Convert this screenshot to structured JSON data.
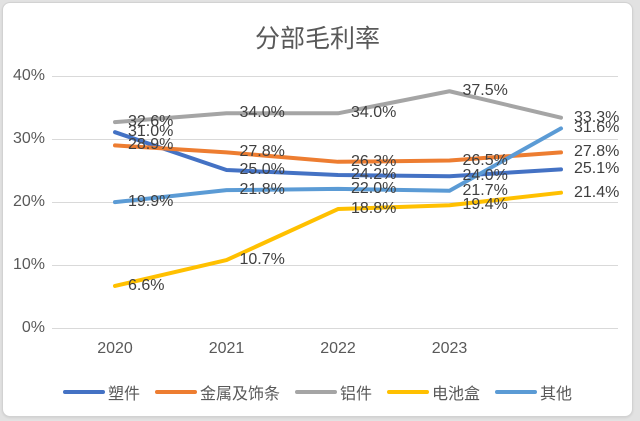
{
  "title": "分部毛利率",
  "chart_data": {
    "type": "line",
    "title": "分部毛利率",
    "categories": [
      "2020",
      "2021",
      "2022",
      "2023",
      ""
    ],
    "series": [
      {
        "name": "塑件",
        "color": "#4472C4",
        "values": [
          31.0,
          25.0,
          24.2,
          24.0,
          25.1
        ]
      },
      {
        "name": "金属及饰条",
        "color": "#ED7D31",
        "values": [
          28.9,
          27.8,
          26.3,
          26.5,
          27.8
        ]
      },
      {
        "name": "铝件",
        "color": "#A5A5A5",
        "values": [
          32.6,
          34.0,
          34.0,
          37.5,
          33.3
        ]
      },
      {
        "name": "电池盒",
        "color": "#FFC000",
        "values": [
          6.6,
          10.7,
          18.8,
          19.4,
          21.4
        ]
      },
      {
        "name": "其他",
        "color": "#5B9BD5",
        "values": [
          19.9,
          21.8,
          22.0,
          21.7,
          31.6
        ]
      }
    ],
    "y_ticks": [
      {
        "value": 40,
        "label": "40%"
      },
      {
        "value": 30,
        "label": "30%"
      },
      {
        "value": 20,
        "label": "20%"
      },
      {
        "value": 10,
        "label": "10%"
      },
      {
        "value": 0,
        "label": "0%"
      }
    ],
    "ylim": [
      0,
      40
    ],
    "grid": true,
    "data_labels": true,
    "data_label_format": {
      "decimals": 1,
      "suffix": "%"
    },
    "legend_position": "bottom"
  },
  "colors": {
    "grid": "#d9d9d9",
    "axis_text": "#595959",
    "data_label_text": "#404040",
    "title_text": "#595959",
    "card_background": "#ffffff",
    "card_border": "#d2d2d2",
    "page_background": "#e2e2e2"
  }
}
